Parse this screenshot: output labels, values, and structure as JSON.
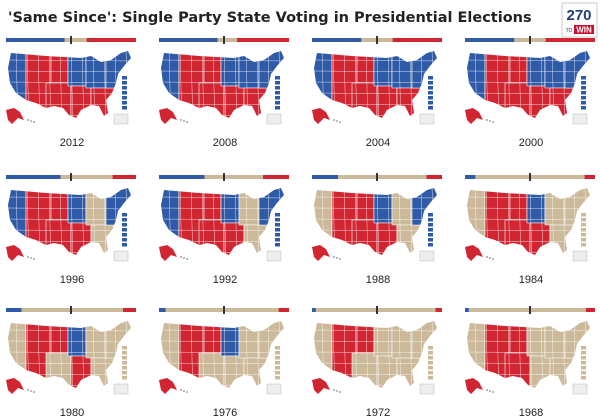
{
  "title": "'Same Since': Single Party State Voting in Presidential Elections",
  "logo": {
    "number": "270",
    "to": "TO",
    "win": "WIN"
  },
  "maps": [
    {
      "year": "2012"
    },
    {
      "year": "2008"
    },
    {
      "year": "2004"
    },
    {
      "year": "2000"
    },
    {
      "year": "1996"
    },
    {
      "year": "1992"
    },
    {
      "year": "1988"
    },
    {
      "year": "1984"
    },
    {
      "year": "1980"
    },
    {
      "year": "1976"
    },
    {
      "year": "1972"
    },
    {
      "year": "1968"
    }
  ]
}
